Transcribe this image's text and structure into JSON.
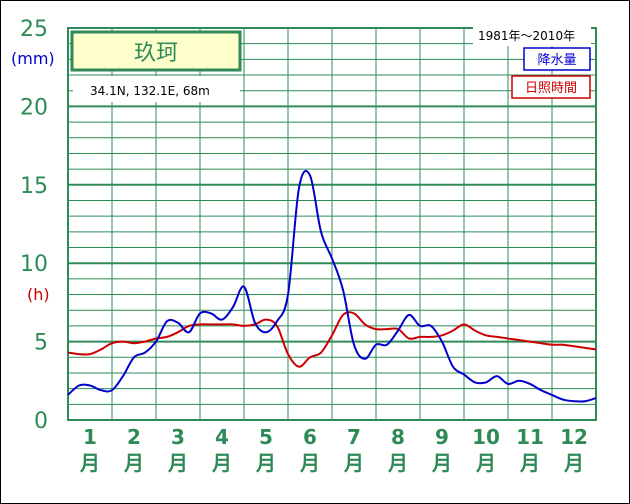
{
  "chart_data": {
    "type": "line",
    "station": "玖珂",
    "location": "34.1N, 132.1E, 68m",
    "period": "1981年～2010年",
    "unit_precip": "(mm)",
    "unit_sun": "(h)",
    "yticks": [
      "0",
      "5",
      "10",
      "15",
      "20",
      "25"
    ],
    "ylim": [
      0,
      25
    ],
    "months": [
      "1",
      "2",
      "3",
      "4",
      "5",
      "6",
      "7",
      "8",
      "9",
      "10",
      "11",
      "12"
    ],
    "month_suffix": "月",
    "x": [
      0.0,
      0.25,
      0.5,
      0.75,
      1.0,
      1.25,
      1.5,
      1.75,
      2.0,
      2.25,
      2.5,
      2.75,
      3.0,
      3.25,
      3.5,
      3.75,
      4.0,
      4.25,
      4.5,
      4.75,
      5.0,
      5.25,
      5.5,
      5.75,
      6.0,
      6.25,
      6.5,
      6.75,
      7.0,
      7.25,
      7.5,
      7.75,
      8.0,
      8.25,
      8.5,
      8.75,
      9.0,
      9.25,
      9.5,
      9.75,
      10.0,
      10.25,
      10.5,
      10.75,
      11.0,
      11.25,
      11.5,
      11.75,
      12.0
    ],
    "series": [
      {
        "name": "降水量",
        "color": "#0000cc",
        "values": [
          1.6,
          2.2,
          2.2,
          1.9,
          1.9,
          2.8,
          4.0,
          4.3,
          5.0,
          6.3,
          6.2,
          5.6,
          6.8,
          6.8,
          6.4,
          7.2,
          8.5,
          6.2,
          5.6,
          6.3,
          8.0,
          14.8,
          15.6,
          12.0,
          10.3,
          8.3,
          4.8,
          3.9,
          4.8,
          4.8,
          5.7,
          6.7,
          6.0,
          6.0,
          5.0,
          3.4,
          2.9,
          2.4,
          2.4,
          2.8,
          2.3,
          2.5,
          2.3,
          1.9,
          1.6,
          1.3,
          1.2,
          1.2,
          1.4
        ]
      },
      {
        "name": "日照時間",
        "color": "#cc0000",
        "values": [
          4.3,
          4.2,
          4.2,
          4.5,
          4.9,
          5.0,
          4.9,
          5.0,
          5.2,
          5.3,
          5.6,
          6.0,
          6.1,
          6.1,
          6.1,
          6.1,
          6.0,
          6.1,
          6.4,
          6.0,
          4.2,
          3.4,
          4.0,
          4.3,
          5.4,
          6.7,
          6.8,
          6.1,
          5.8,
          5.8,
          5.8,
          5.2,
          5.3,
          5.3,
          5.4,
          5.7,
          6.1,
          5.7,
          5.4,
          5.3,
          5.2,
          5.1,
          5.0,
          4.9,
          4.8,
          4.8,
          4.7,
          4.6,
          4.5
        ]
      }
    ]
  }
}
